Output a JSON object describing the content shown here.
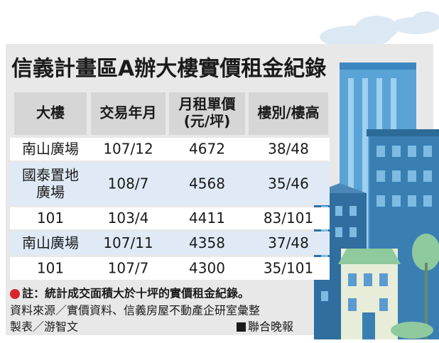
{
  "title": "信義計畫區A辦大樓實價租金紀錄",
  "table": {
    "header": [
      "大樓",
      "交易年月",
      [
        "月租單價",
        "(元/坪)"
      ],
      "樓別/樓高"
    ],
    "rows": [
      [
        "南山廣場",
        "107/12",
        "4672",
        "38/48"
      ],
      [
        [
          "國泰置地",
          "廣場"
        ],
        "108/7",
        "4568",
        "35/46"
      ],
      [
        "101",
        "103/4",
        "4411",
        "83/101"
      ],
      [
        "南山廣場",
        "107/11",
        "4358",
        "37/48"
      ],
      [
        "101",
        "107/7",
        "4300",
        "35/101"
      ]
    ]
  },
  "note": "註：統計成交面積大於十坪的實價租金紀錄。",
  "source": "資料來源／實價資料、信義房屋不動產企研室彙整",
  "credit": "製表／游智文",
  "publisher": "聯合晚報"
}
